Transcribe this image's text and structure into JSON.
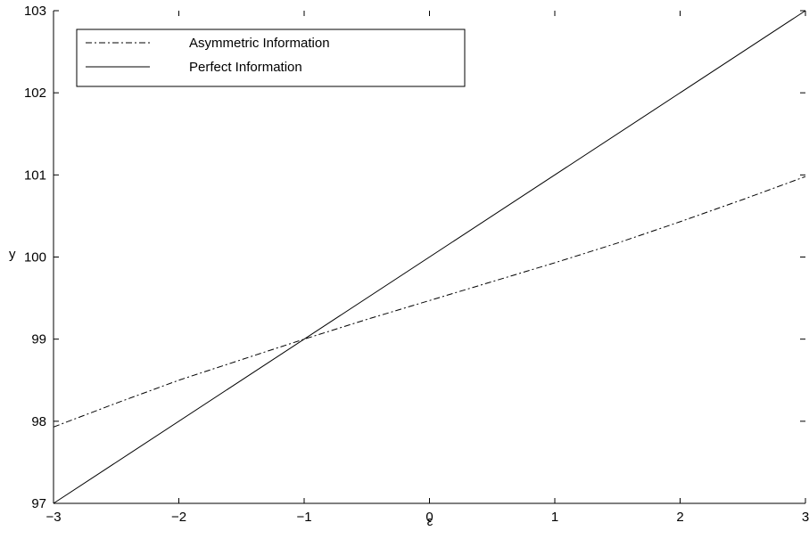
{
  "chart_data": {
    "type": "line",
    "title": "",
    "xlabel": "ε",
    "ylabel": "y",
    "xlim": [
      -3,
      3
    ],
    "ylim": [
      97,
      103
    ],
    "xticks": [
      "−3",
      "−2",
      "−1",
      "0",
      "1",
      "2",
      "3"
    ],
    "yticks": [
      "97",
      "98",
      "99",
      "100",
      "101",
      "102",
      "103"
    ],
    "grid": false,
    "legend_position": "top-left",
    "series": [
      {
        "name": "Asymmetric Information",
        "style": "dash-dot",
        "color": "#000000",
        "x": [
          -3,
          -2.5,
          -2,
          -1.5,
          -1,
          -0.5,
          0,
          0.5,
          1,
          1.5,
          2,
          2.5,
          3
        ],
        "y": [
          97.93,
          98.22,
          98.5,
          98.75,
          99.0,
          99.24,
          99.47,
          99.7,
          99.93,
          100.17,
          100.43,
          100.7,
          100.98
        ]
      },
      {
        "name": "Perfect Information",
        "style": "solid",
        "color": "#000000",
        "x": [
          -3,
          3
        ],
        "y": [
          97,
          103
        ]
      }
    ]
  }
}
